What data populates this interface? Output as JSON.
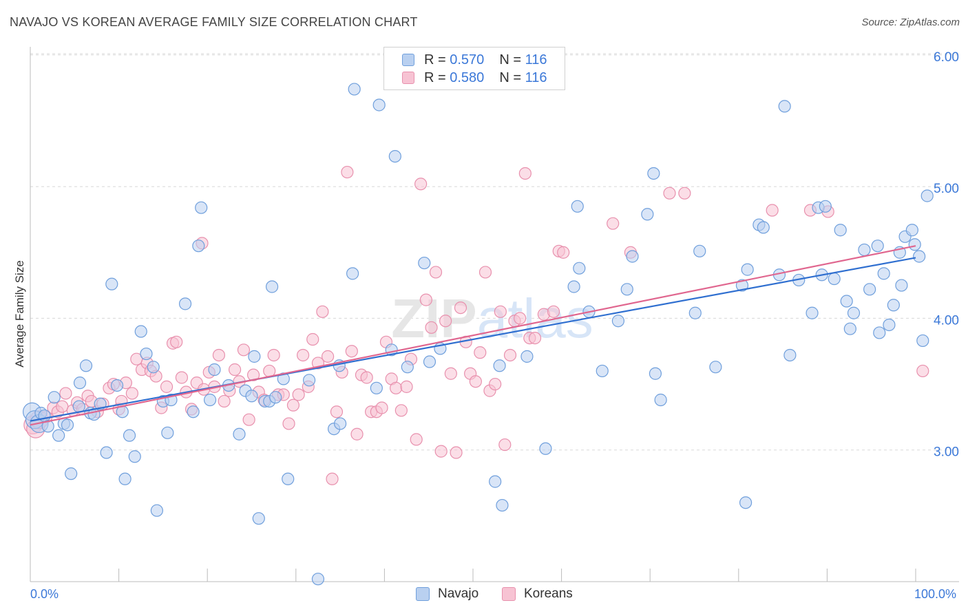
{
  "title": "NAVAJO VS KOREAN AVERAGE FAMILY SIZE CORRELATION CHART",
  "source": "Source: ZipAtlas.com",
  "watermark": "ZIPatlas",
  "legend": {
    "rows": [
      {
        "r_label": "R = ",
        "r_value": "0.570",
        "n_label": "N = ",
        "n_value": "116"
      },
      {
        "r_label": "R = ",
        "r_value": "0.580",
        "n_label": "N = ",
        "n_value": "116"
      }
    ]
  },
  "bottom_legend": [
    "Navajo",
    "Koreans"
  ],
  "x_labels": {
    "min": "0.0%",
    "max": "100.0%"
  },
  "colors": {
    "navajo_fill": "#b9d0f0",
    "navajo_stroke": "#6f9fdc",
    "navajo_line": "#2f6fd0",
    "korean_fill": "#f7c3d3",
    "korean_stroke": "#e890ad",
    "korean_line": "#e0668f",
    "tick_label": "#3b78d8",
    "grid": "#d8d8d8"
  },
  "chart_data": {
    "type": "scatter",
    "title": "NAVAJO VS KOREAN AVERAGE FAMILY SIZE CORRELATION CHART",
    "xlabel": "",
    "ylabel": "Average Family Size",
    "xlim": [
      0,
      100
    ],
    "ylim": [
      2.0,
      6.1
    ],
    "y_ticks": [
      {
        "value": 3.0,
        "label": "3.00"
      },
      {
        "value": 4.0,
        "label": "4.00"
      },
      {
        "value": 5.0,
        "label": "5.00"
      },
      {
        "value": 6.0,
        "label": "6.00"
      }
    ],
    "grid": true,
    "legend_position": "top-center",
    "series": [
      {
        "name": "Navajo",
        "trend": {
          "x": [
            0,
            100
          ],
          "y": [
            3.22,
            4.46
          ]
        },
        "points": [
          [
            0.2,
            3.29
          ],
          [
            0.5,
            3.23
          ],
          [
            1.0,
            3.2
          ],
          [
            1.2,
            3.28
          ],
          [
            1.6,
            3.26
          ],
          [
            2.0,
            3.18
          ],
          [
            2.7,
            3.4
          ],
          [
            3.2,
            3.11
          ],
          [
            3.8,
            3.2
          ],
          [
            4.2,
            3.19
          ],
          [
            4.6,
            2.82
          ],
          [
            5.5,
            3.33
          ],
          [
            5.6,
            3.51
          ],
          [
            6.3,
            3.64
          ],
          [
            6.8,
            3.28
          ],
          [
            7.2,
            3.27
          ],
          [
            7.9,
            3.35
          ],
          [
            8.6,
            2.98
          ],
          [
            9.2,
            4.26
          ],
          [
            9.8,
            3.49
          ],
          [
            10.4,
            3.29
          ],
          [
            10.7,
            2.78
          ],
          [
            11.2,
            3.11
          ],
          [
            11.8,
            2.95
          ],
          [
            12.5,
            3.9
          ],
          [
            13.1,
            3.73
          ],
          [
            13.9,
            3.63
          ],
          [
            14.3,
            2.54
          ],
          [
            15.0,
            3.37
          ],
          [
            15.5,
            3.13
          ],
          [
            15.9,
            3.38
          ],
          [
            17.5,
            4.11
          ],
          [
            18.4,
            3.29
          ],
          [
            19.0,
            4.55
          ],
          [
            19.3,
            4.84
          ],
          [
            20.3,
            3.38
          ],
          [
            20.8,
            3.61
          ],
          [
            22.4,
            3.49
          ],
          [
            23.6,
            3.12
          ],
          [
            24.3,
            3.45
          ],
          [
            25.0,
            3.41
          ],
          [
            25.3,
            3.71
          ],
          [
            25.8,
            2.48
          ],
          [
            26.5,
            3.37
          ],
          [
            27.0,
            3.37
          ],
          [
            27.3,
            4.24
          ],
          [
            27.7,
            3.4
          ],
          [
            28.6,
            3.54
          ],
          [
            29.1,
            2.78
          ],
          [
            31.5,
            3.53
          ],
          [
            32.5,
            2.02
          ],
          [
            34.3,
            3.16
          ],
          [
            34.9,
            3.64
          ],
          [
            35.0,
            3.2
          ],
          [
            36.4,
            4.34
          ],
          [
            36.6,
            5.74
          ],
          [
            39.1,
            3.47
          ],
          [
            39.4,
            5.62
          ],
          [
            40.8,
            3.76
          ],
          [
            41.2,
            5.23
          ],
          [
            42.6,
            3.63
          ],
          [
            44.5,
            4.42
          ],
          [
            45.1,
            3.67
          ],
          [
            46.3,
            3.77
          ],
          [
            52.5,
            2.76
          ],
          [
            53.0,
            3.64
          ],
          [
            53.3,
            2.58
          ],
          [
            56.1,
            3.71
          ],
          [
            58.2,
            3.01
          ],
          [
            61.4,
            4.24
          ],
          [
            61.8,
            4.85
          ],
          [
            62.0,
            4.38
          ],
          [
            63.1,
            4.05
          ],
          [
            64.6,
            3.6
          ],
          [
            66.4,
            3.98
          ],
          [
            67.4,
            4.22
          ],
          [
            68.0,
            4.47
          ],
          [
            69.7,
            4.79
          ],
          [
            70.4,
            5.1
          ],
          [
            70.6,
            3.58
          ],
          [
            71.2,
            3.38
          ],
          [
            75.1,
            4.04
          ],
          [
            75.6,
            4.51
          ],
          [
            77.4,
            3.63
          ],
          [
            80.4,
            4.25
          ],
          [
            80.8,
            2.6
          ],
          [
            81.0,
            4.37
          ],
          [
            82.3,
            4.71
          ],
          [
            82.8,
            4.69
          ],
          [
            84.6,
            4.33
          ],
          [
            85.2,
            5.61
          ],
          [
            85.8,
            3.72
          ],
          [
            86.8,
            4.29
          ],
          [
            88.3,
            4.04
          ],
          [
            89.0,
            4.84
          ],
          [
            89.4,
            4.33
          ],
          [
            89.8,
            4.85
          ],
          [
            90.8,
            4.3
          ],
          [
            91.5,
            4.67
          ],
          [
            92.2,
            4.13
          ],
          [
            92.6,
            3.92
          ],
          [
            93.0,
            4.04
          ],
          [
            94.2,
            4.52
          ],
          [
            94.8,
            4.22
          ],
          [
            95.7,
            4.55
          ],
          [
            95.9,
            3.89
          ],
          [
            96.4,
            4.34
          ],
          [
            97.0,
            3.95
          ],
          [
            97.5,
            4.1
          ],
          [
            98.2,
            4.5
          ],
          [
            98.4,
            4.25
          ],
          [
            98.8,
            4.62
          ],
          [
            99.6,
            4.67
          ],
          [
            99.9,
            4.56
          ],
          [
            100.4,
            4.47
          ],
          [
            100.8,
            3.83
          ],
          [
            101.3,
            4.93
          ]
        ]
      },
      {
        "name": "Koreans",
        "trend": {
          "x": [
            0,
            100
          ],
          "y": [
            3.19,
            4.55
          ]
        },
        "points": [
          [
            0.3,
            3.19
          ],
          [
            0.6,
            3.16
          ],
          [
            1.0,
            3.23
          ],
          [
            1.8,
            3.25
          ],
          [
            2.6,
            3.32
          ],
          [
            3.1,
            3.29
          ],
          [
            3.6,
            3.33
          ],
          [
            4.0,
            3.43
          ],
          [
            4.8,
            3.3
          ],
          [
            5.3,
            3.36
          ],
          [
            5.9,
            3.31
          ],
          [
            6.5,
            3.41
          ],
          [
            6.9,
            3.37
          ],
          [
            7.6,
            3.29
          ],
          [
            8.2,
            3.35
          ],
          [
            8.9,
            3.47
          ],
          [
            9.4,
            3.5
          ],
          [
            10.0,
            3.31
          ],
          [
            10.3,
            3.37
          ],
          [
            10.8,
            3.51
          ],
          [
            11.5,
            3.43
          ],
          [
            12.0,
            3.69
          ],
          [
            12.6,
            3.61
          ],
          [
            13.2,
            3.66
          ],
          [
            13.6,
            3.6
          ],
          [
            14.2,
            3.56
          ],
          [
            14.8,
            3.32
          ],
          [
            15.4,
            3.48
          ],
          [
            16.1,
            3.81
          ],
          [
            16.5,
            3.82
          ],
          [
            17.1,
            3.55
          ],
          [
            17.6,
            3.44
          ],
          [
            18.2,
            3.31
          ],
          [
            18.8,
            3.51
          ],
          [
            19.4,
            4.57
          ],
          [
            19.6,
            3.46
          ],
          [
            20.2,
            3.59
          ],
          [
            20.8,
            3.48
          ],
          [
            21.3,
            3.72
          ],
          [
            21.9,
            3.37
          ],
          [
            22.5,
            3.45
          ],
          [
            23.1,
            3.61
          ],
          [
            23.6,
            3.52
          ],
          [
            24.1,
            3.76
          ],
          [
            24.7,
            3.23
          ],
          [
            25.2,
            3.57
          ],
          [
            25.8,
            3.44
          ],
          [
            26.4,
            3.38
          ],
          [
            27.0,
            3.6
          ],
          [
            27.5,
            3.72
          ],
          [
            28.0,
            3.42
          ],
          [
            28.6,
            3.42
          ],
          [
            29.2,
            3.2
          ],
          [
            29.7,
            3.34
          ],
          [
            30.3,
            3.42
          ],
          [
            30.8,
            3.72
          ],
          [
            31.4,
            3.48
          ],
          [
            31.9,
            3.84
          ],
          [
            32.5,
            3.66
          ],
          [
            33.0,
            4.05
          ],
          [
            33.6,
            3.71
          ],
          [
            34.1,
            2.78
          ],
          [
            34.6,
            3.29
          ],
          [
            35.2,
            3.59
          ],
          [
            35.8,
            5.11
          ],
          [
            36.3,
            3.75
          ],
          [
            36.9,
            3.12
          ],
          [
            37.4,
            3.57
          ],
          [
            38.0,
            3.55
          ],
          [
            38.5,
            3.29
          ],
          [
            39.1,
            3.29
          ],
          [
            39.7,
            3.32
          ],
          [
            40.2,
            3.82
          ],
          [
            40.8,
            3.54
          ],
          [
            41.3,
            3.47
          ],
          [
            41.9,
            3.3
          ],
          [
            42.5,
            3.48
          ],
          [
            43.0,
            3.69
          ],
          [
            43.6,
            3.08
          ],
          [
            44.1,
            5.02
          ],
          [
            44.7,
            4.14
          ],
          [
            45.3,
            3.93
          ],
          [
            45.8,
            4.35
          ],
          [
            46.4,
            2.99
          ],
          [
            46.9,
            3.98
          ],
          [
            47.5,
            3.58
          ],
          [
            48.1,
            2.98
          ],
          [
            48.6,
            4.08
          ],
          [
            49.2,
            3.82
          ],
          [
            49.7,
            3.58
          ],
          [
            50.3,
            3.52
          ],
          [
            50.8,
            3.74
          ],
          [
            51.4,
            4.35
          ],
          [
            51.9,
            3.45
          ],
          [
            52.5,
            3.5
          ],
          [
            53.1,
            4.05
          ],
          [
            53.6,
            3.04
          ],
          [
            54.2,
            3.72
          ],
          [
            54.7,
            3.98
          ],
          [
            55.3,
            4.0
          ],
          [
            55.9,
            5.1
          ],
          [
            56.4,
            3.85
          ],
          [
            57.0,
            3.85
          ],
          [
            58.0,
            4.03
          ],
          [
            59.1,
            4.05
          ],
          [
            59.7,
            4.51
          ],
          [
            60.2,
            4.5
          ],
          [
            65.8,
            4.72
          ],
          [
            67.8,
            4.5
          ],
          [
            72.2,
            4.95
          ],
          [
            73.9,
            4.95
          ],
          [
            83.8,
            4.82
          ],
          [
            88.1,
            4.82
          ],
          [
            90.1,
            4.81
          ],
          [
            100.8,
            3.6
          ]
        ]
      }
    ]
  }
}
